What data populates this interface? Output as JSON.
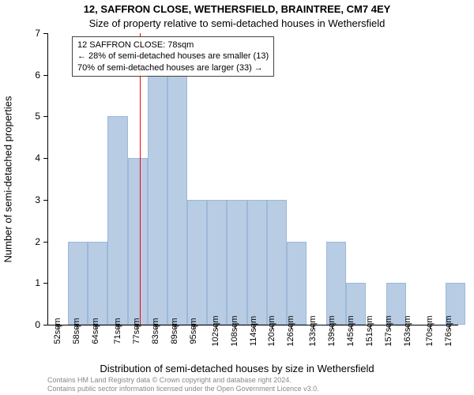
{
  "title_main": "12, SAFFRON CLOSE, WETHERSFIELD, BRAINTREE, CM7 4EY",
  "title_sub": "Size of property relative to semi-detached houses in Wethersfield",
  "y_axis_label": "Number of semi-detached properties",
  "x_axis_label": "Distribution of semi-detached houses by size in Wethersfield",
  "annotation": {
    "line1": "12 SAFFRON CLOSE: 78sqm",
    "line2": "← 28% of semi-detached houses are smaller (13)",
    "line3": "70% of semi-detached houses are larger (33) →"
  },
  "footer1": "Contains HM Land Registry data © Crown copyright and database right 2024.",
  "footer2": "Contains public sector information licensed under the Open Government Licence v3.0.",
  "chart": {
    "type": "histogram",
    "ylim": [
      0,
      7
    ],
    "yticks": [
      0,
      1,
      2,
      3,
      4,
      5,
      6,
      7
    ],
    "x_min": 49,
    "x_max": 179,
    "xticks": [
      52,
      58,
      64,
      71,
      77,
      83,
      89,
      95,
      102,
      108,
      114,
      120,
      126,
      133,
      139,
      145,
      151,
      157,
      163,
      170,
      176
    ],
    "xtick_suffix": "sqm",
    "bar_color": "#b8cce4",
    "bar_border": "#9db8d8",
    "background_color": "#ffffff",
    "marker_color": "#ff0000",
    "marker_x": 78,
    "bin_width": 6.3,
    "bins": [
      {
        "x": 49,
        "h": 0
      },
      {
        "x": 55.3,
        "h": 2
      },
      {
        "x": 61.6,
        "h": 2
      },
      {
        "x": 67.9,
        "h": 5
      },
      {
        "x": 74.2,
        "h": 4
      },
      {
        "x": 80.5,
        "h": 6
      },
      {
        "x": 86.8,
        "h": 6
      },
      {
        "x": 93.1,
        "h": 3
      },
      {
        "x": 99.4,
        "h": 3
      },
      {
        "x": 105.7,
        "h": 3
      },
      {
        "x": 112,
        "h": 3
      },
      {
        "x": 118.3,
        "h": 3
      },
      {
        "x": 124.6,
        "h": 2
      },
      {
        "x": 130.9,
        "h": 0
      },
      {
        "x": 137.2,
        "h": 2
      },
      {
        "x": 143.5,
        "h": 1
      },
      {
        "x": 149.8,
        "h": 0
      },
      {
        "x": 156.1,
        "h": 1
      },
      {
        "x": 162.4,
        "h": 0
      },
      {
        "x": 168.7,
        "h": 0
      },
      {
        "x": 175,
        "h": 1
      }
    ]
  }
}
